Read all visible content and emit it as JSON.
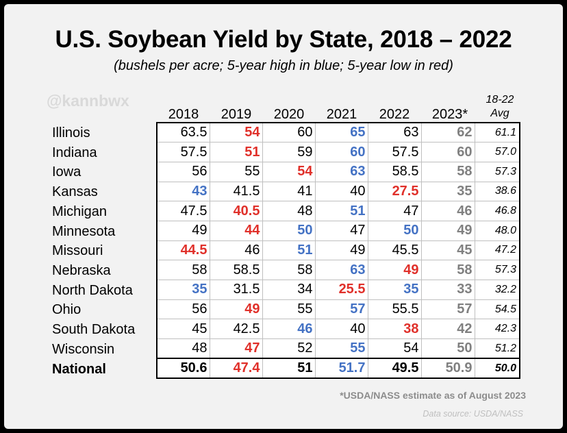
{
  "title": "U.S. Soybean Yield by State, 2018 – 2022",
  "subtitle": "(bushels per acre; 5-year high in blue; 5-year low in red)",
  "handle": "@kannbwx",
  "footnote": "*USDA/NASS estimate as of August 2023",
  "source": "Data source: USDA/NASS",
  "colors": {
    "high": "#4472c4",
    "low": "#e0302a",
    "estimate": "#808080"
  },
  "chart_data": {
    "type": "table",
    "title": "U.S. Soybean Yield by State, 2018 – 2022",
    "columns": [
      "2018",
      "2019",
      "2020",
      "2021",
      "2022",
      "2023*"
    ],
    "avg_header": [
      "18-22",
      "Avg"
    ],
    "rows": [
      {
        "label": "Illinois",
        "values": [
          "63.5",
          "54",
          "60",
          "65",
          "63",
          "62"
        ],
        "styles": [
          "",
          "lo",
          "",
          "hi",
          "",
          ""
        ],
        "avg": "61.1"
      },
      {
        "label": "Indiana",
        "values": [
          "57.5",
          "51",
          "59",
          "60",
          "57.5",
          "60"
        ],
        "styles": [
          "",
          "lo",
          "",
          "hi",
          "",
          ""
        ],
        "avg": "57.0"
      },
      {
        "label": "Iowa",
        "values": [
          "56",
          "55",
          "54",
          "63",
          "58.5",
          "58"
        ],
        "styles": [
          "",
          "",
          "lo",
          "hi",
          "",
          ""
        ],
        "avg": "57.3"
      },
      {
        "label": "Kansas",
        "values": [
          "43",
          "41.5",
          "41",
          "40",
          "27.5",
          "35"
        ],
        "styles": [
          "hi",
          "",
          "",
          "",
          "lo",
          ""
        ],
        "avg": "38.6"
      },
      {
        "label": "Michigan",
        "values": [
          "47.5",
          "40.5",
          "48",
          "51",
          "47",
          "46"
        ],
        "styles": [
          "",
          "lo",
          "",
          "hi",
          "",
          ""
        ],
        "avg": "46.8"
      },
      {
        "label": "Minnesota",
        "values": [
          "49",
          "44",
          "50",
          "47",
          "50",
          "49"
        ],
        "styles": [
          "",
          "lo",
          "hi",
          "",
          "hi",
          ""
        ],
        "avg": "48.0"
      },
      {
        "label": "Missouri",
        "values": [
          "44.5",
          "46",
          "51",
          "49",
          "45.5",
          "45"
        ],
        "styles": [
          "lo",
          "",
          "hi",
          "",
          "",
          ""
        ],
        "avg": "47.2"
      },
      {
        "label": "Nebraska",
        "values": [
          "58",
          "58.5",
          "58",
          "63",
          "49",
          "58"
        ],
        "styles": [
          "",
          "",
          "",
          "hi",
          "lo",
          ""
        ],
        "avg": "57.3"
      },
      {
        "label": "North Dakota",
        "values": [
          "35",
          "31.5",
          "34",
          "25.5",
          "35",
          "33"
        ],
        "styles": [
          "hi",
          "",
          "",
          "lo",
          "hi",
          ""
        ],
        "avg": "32.2"
      },
      {
        "label": "Ohio",
        "values": [
          "56",
          "49",
          "55",
          "57",
          "55.5",
          "57"
        ],
        "styles": [
          "",
          "lo",
          "",
          "hi",
          "",
          ""
        ],
        "avg": "54.5"
      },
      {
        "label": "South Dakota",
        "values": [
          "45",
          "42.5",
          "46",
          "40",
          "38",
          "42"
        ],
        "styles": [
          "",
          "",
          "hi",
          "",
          "lo",
          ""
        ],
        "avg": "42.3"
      },
      {
        "label": "Wisconsin",
        "values": [
          "48",
          "47",
          "52",
          "55",
          "54",
          "50"
        ],
        "styles": [
          "",
          "lo",
          "",
          "hi",
          "",
          ""
        ],
        "avg": "51.2"
      },
      {
        "label": "National",
        "values": [
          "50.6",
          "47.4",
          "51",
          "51.7",
          "49.5",
          "50.9"
        ],
        "styles": [
          "",
          "lo",
          "",
          "hi",
          "",
          ""
        ],
        "avg": "50.0"
      }
    ]
  }
}
